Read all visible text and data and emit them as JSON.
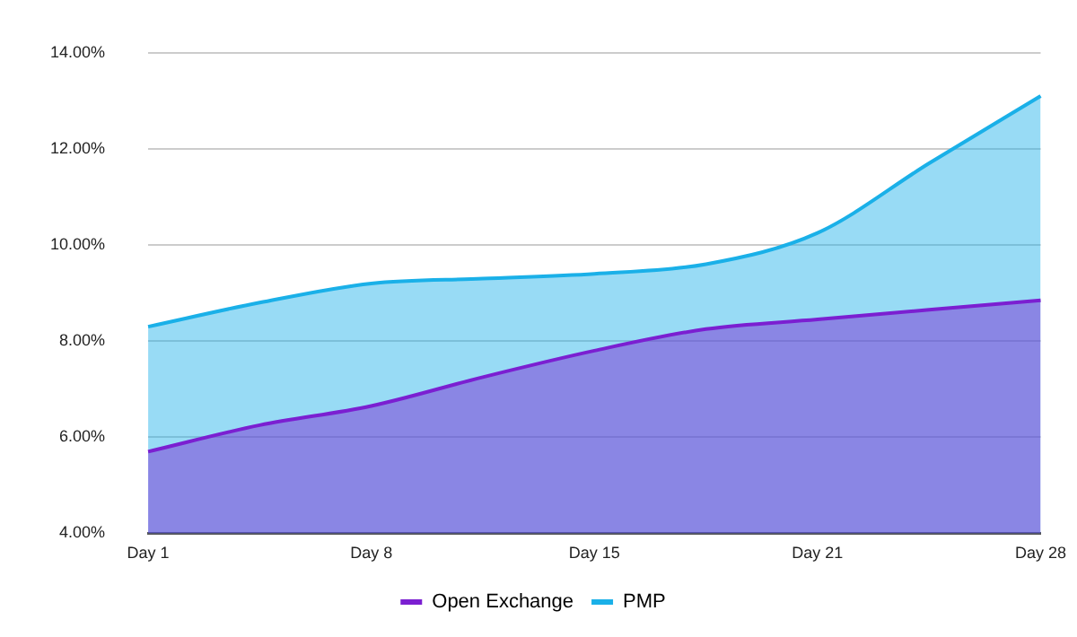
{
  "chart_data": {
    "type": "area",
    "categories": [
      "Day 1",
      null,
      "Day 8",
      null,
      "Day 15",
      null,
      "Day 21",
      null,
      "Day 28"
    ],
    "series": [
      {
        "name": "Open Exchange",
        "color": "#7b1fd1",
        "values": [
          5.7,
          6.25,
          6.65,
          7.25,
          7.8,
          8.25,
          8.45,
          8.65,
          8.85
        ]
      },
      {
        "name": "PMP",
        "color": "#1ab0e8",
        "values": [
          8.3,
          8.8,
          9.2,
          9.3,
          9.4,
          9.6,
          10.25,
          11.7,
          13.1
        ]
      }
    ],
    "ylim": [
      4,
      14
    ],
    "yticks": [
      {
        "value": 4,
        "label": "4.00%"
      },
      {
        "value": 6,
        "label": "6.00%"
      },
      {
        "value": 8,
        "label": "8.00%"
      },
      {
        "value": 10,
        "label": "10.00%"
      },
      {
        "value": 12,
        "label": "12.00%"
      },
      {
        "value": 14,
        "label": "14.00%"
      }
    ],
    "grid": "y",
    "legend": "bottom"
  }
}
